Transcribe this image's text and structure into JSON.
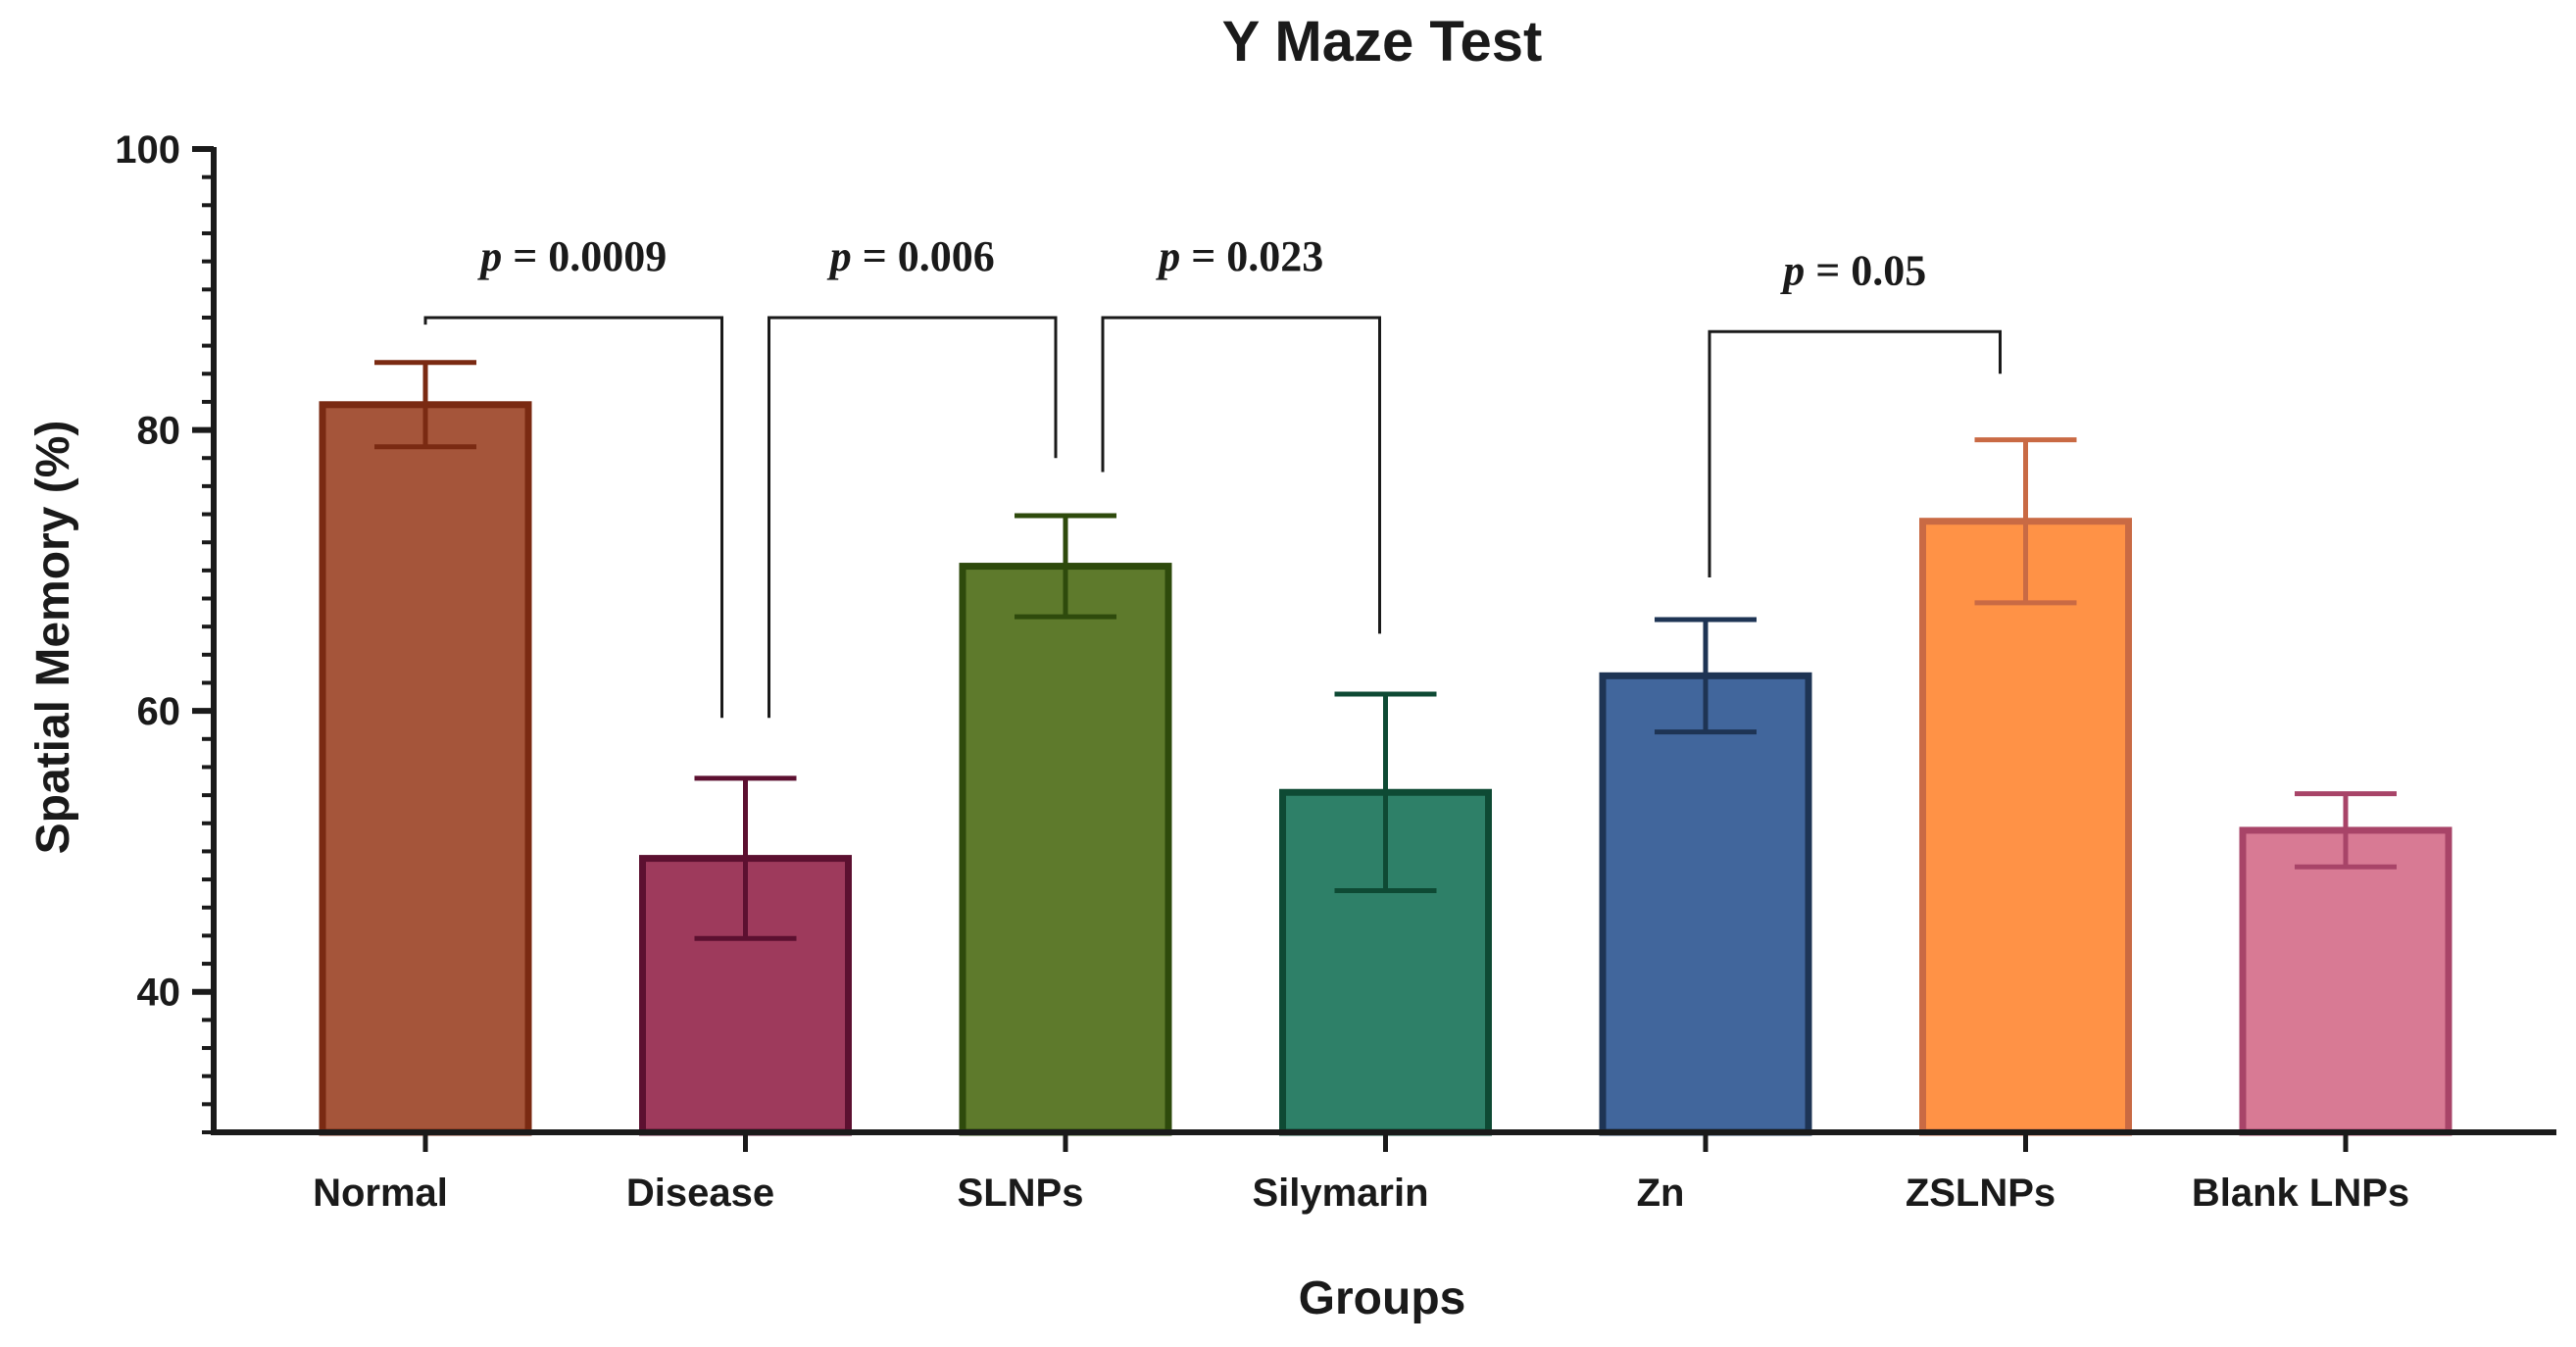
{
  "chart_data": {
    "type": "bar",
    "title": "Y Maze Test",
    "xlabel": "Groups",
    "ylabel": "Spatial Memory (%)",
    "ylim": [
      30,
      100
    ],
    "yticks": [
      40,
      60,
      80,
      100
    ],
    "categories": [
      "Normal",
      "Disease",
      "SLNPs",
      "Silymarin",
      "Zn",
      "ZSLNPs",
      "Blank LNPs"
    ],
    "values": [
      81.8,
      49.5,
      70.3,
      54.2,
      62.5,
      73.5,
      51.5
    ],
    "errors": [
      3.0,
      5.7,
      3.6,
      7.0,
      4.0,
      5.8,
      2.6
    ],
    "fill_colors": [
      "#a5553a",
      "#9e3a5c",
      "#5e7a2c",
      "#2e8068",
      "#41669c",
      "#ff9246",
      "#d87a94"
    ],
    "edge_colors": [
      "#7a2a12",
      "#5c1030",
      "#2e4a0c",
      "#0e4a34",
      "#1e3454",
      "#c96a44",
      "#a84468"
    ],
    "comparisons": [
      {
        "from": 0,
        "to": 1,
        "label": "p = 0.0009",
        "p_italic": "p",
        "p_rest": " = 0.0009",
        "bracket_y": 88,
        "left_tip": 87.5,
        "right_tip": 59.5
      },
      {
        "from": 1,
        "to": 2,
        "label": "p = 0.006",
        "p_italic": "p",
        "p_rest": " = 0.006",
        "bracket_y": 88,
        "left_tip": 59.5,
        "right_tip": 78
      },
      {
        "from": 2,
        "to": 3,
        "label": "p = 0.023",
        "p_italic": "p",
        "p_rest": " = 0.023",
        "bracket_y": 88,
        "left_tip": 77,
        "right_tip": 65.5
      },
      {
        "from": 4,
        "to": 5,
        "label": "p = 0.05",
        "p_italic": "p",
        "p_rest": " = 0.05",
        "bracket_y": 87,
        "left_tip": 69.5,
        "right_tip": 84
      }
    ]
  }
}
